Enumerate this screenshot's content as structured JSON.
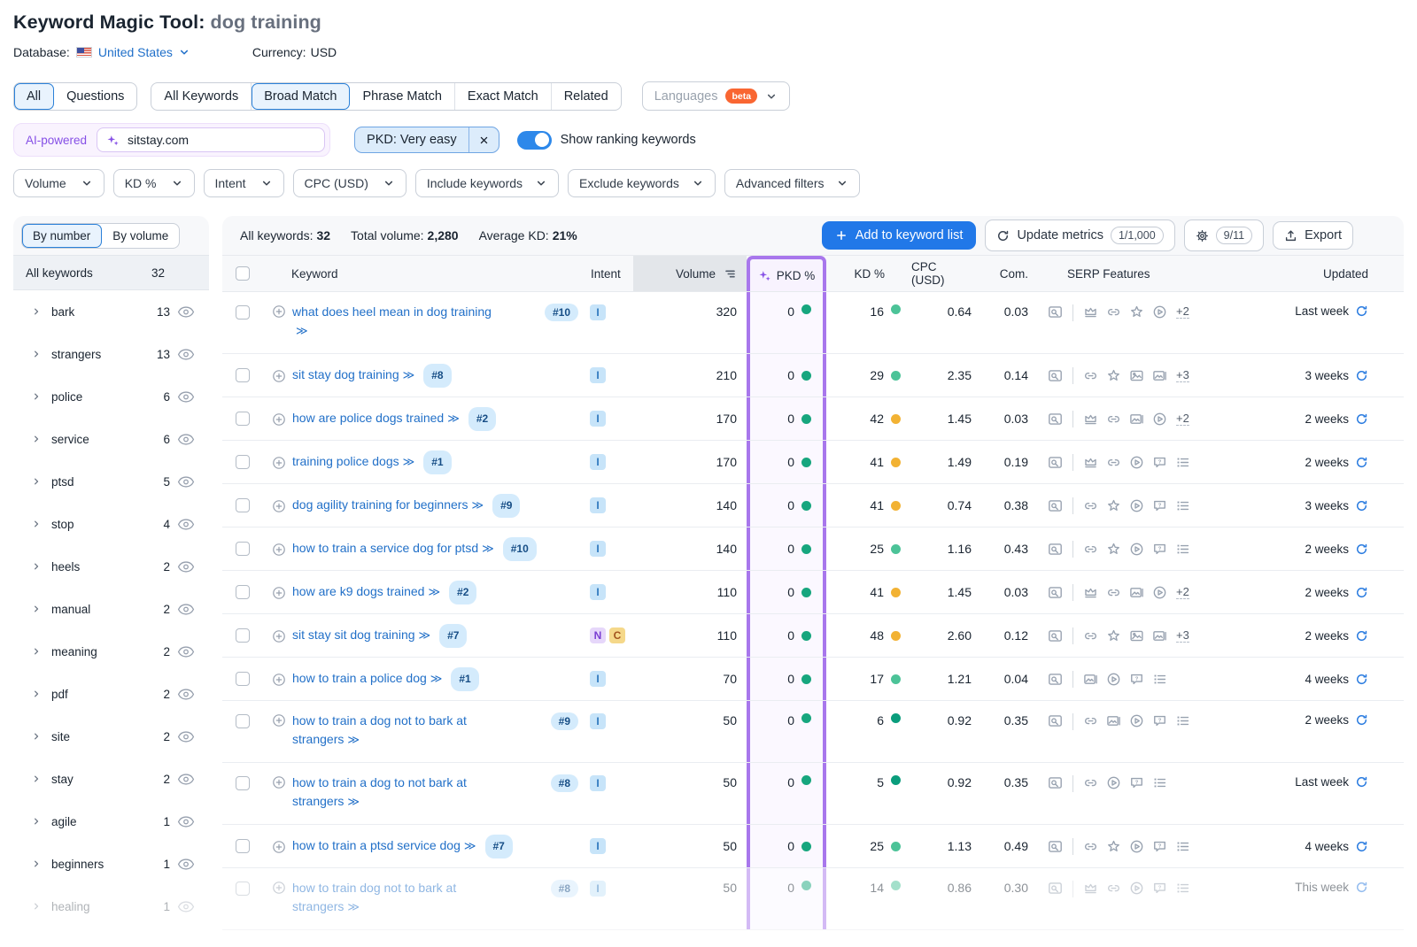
{
  "colors": {
    "primary_blue": "#2178e8",
    "link_blue": "#2270c8",
    "pkd_highlight_purple": "#a877ec",
    "ai_purple": "#8650e6",
    "beta_orange": "#f96632",
    "toggle_blue": "#2d88ea",
    "kd_very_easy": "#0a9d7c",
    "kd_easy": "#4cc398",
    "kd_possible": "#f2b233",
    "pkd_dot_green": "#17a67e",
    "intent_informational": "#c7e4f9",
    "intent_navigational": "#e6d7fa",
    "intent_commercial": "#f5d88a"
  },
  "header": {
    "title": "Keyword Magic Tool:",
    "query": "dog training",
    "database_label": "Database:",
    "database_value": "United States",
    "currency_label": "Currency:",
    "currency_value": "USD"
  },
  "tabs": {
    "match_tabs": [
      "All",
      "Questions"
    ],
    "match_selected": 0,
    "type_tabs": [
      "All Keywords",
      "Broad Match",
      "Phrase Match",
      "Exact Match",
      "Related"
    ],
    "type_selected": 1,
    "languages_label": "Languages",
    "beta_label": "beta"
  },
  "search": {
    "ai_label": "AI-powered",
    "value": "sitstay.com",
    "pkd_filter": "PKD: Very easy",
    "toggle_label": "Show ranking keywords",
    "toggle_on": true
  },
  "filters": [
    "Volume",
    "KD %",
    "Intent",
    "CPC (USD)",
    "Include keywords",
    "Exclude keywords",
    "Advanced filters"
  ],
  "sidebar": {
    "sort_options": [
      "By number",
      "By volume"
    ],
    "sort_selected": 0,
    "header_label": "All keywords",
    "header_count": "32",
    "groups": [
      {
        "label": "bark",
        "count": "13"
      },
      {
        "label": "strangers",
        "count": "13"
      },
      {
        "label": "police",
        "count": "6"
      },
      {
        "label": "service",
        "count": "6"
      },
      {
        "label": "ptsd",
        "count": "5"
      },
      {
        "label": "stop",
        "count": "4"
      },
      {
        "label": "heels",
        "count": "2"
      },
      {
        "label": "manual",
        "count": "2"
      },
      {
        "label": "meaning",
        "count": "2"
      },
      {
        "label": "pdf",
        "count": "2"
      },
      {
        "label": "site",
        "count": "2"
      },
      {
        "label": "stay",
        "count": "2"
      },
      {
        "label": "agile",
        "count": "1"
      },
      {
        "label": "beginners",
        "count": "1"
      },
      {
        "label": "healing",
        "count": "1",
        "faded": true
      }
    ]
  },
  "toolbar": {
    "stats": [
      {
        "label": "All keywords:",
        "value": "32"
      },
      {
        "label": "Total volume:",
        "value": "2,280"
      },
      {
        "label": "Average KD:",
        "value": "21%"
      }
    ],
    "add_button": "Add to keyword list",
    "update_button": "Update metrics",
    "update_quota": "1/1,000",
    "settings_quota": "9/11",
    "export_button": "Export"
  },
  "table": {
    "columns": {
      "keyword": "Keyword",
      "intent": "Intent",
      "volume": "Volume",
      "pkd": "PKD %",
      "kd": "KD %",
      "cpc": "CPC (USD)",
      "com": "Com.",
      "serp": "SERP Features",
      "updated": "Updated"
    },
    "rows": [
      {
        "l1": "what does heel mean in dog training",
        "chev1": false,
        "l2": "",
        "chev2": true,
        "badge": "#10",
        "intents": [
          "I"
        ],
        "volume": "320",
        "pkd": "0",
        "kd": "16",
        "kd_level": "easy",
        "cpc": "0.64",
        "com": "0.03",
        "serp": [
          "crown",
          "link",
          "star",
          "play"
        ],
        "more": "+2",
        "updated": "Last week",
        "faded": false
      },
      {
        "l1": "sit stay dog training",
        "chev1": true,
        "l2": null,
        "chev2": false,
        "badge": "#8",
        "intents": [
          "I"
        ],
        "volume": "210",
        "pkd": "0",
        "kd": "29",
        "kd_level": "easy",
        "cpc": "2.35",
        "com": "0.14",
        "serp": [
          "link",
          "star",
          "image",
          "image-alt"
        ],
        "more": "+3",
        "updated": "3 weeks",
        "faded": false
      },
      {
        "l1": "how are police dogs trained",
        "chev1": true,
        "l2": null,
        "chev2": false,
        "badge": "#2",
        "intents": [
          "I"
        ],
        "volume": "170",
        "pkd": "0",
        "kd": "42",
        "kd_level": "possible",
        "cpc": "1.45",
        "com": "0.03",
        "serp": [
          "crown",
          "link",
          "image-alt",
          "play"
        ],
        "more": "+2",
        "updated": "2 weeks",
        "faded": false
      },
      {
        "l1": "training police dogs",
        "chev1": true,
        "l2": null,
        "chev2": false,
        "badge": "#1",
        "intents": [
          "I"
        ],
        "volume": "170",
        "pkd": "0",
        "kd": "41",
        "kd_level": "possible",
        "cpc": "1.49",
        "com": "0.19",
        "serp": [
          "crown",
          "link",
          "play",
          "question",
          "list"
        ],
        "more": null,
        "updated": "2 weeks",
        "faded": false
      },
      {
        "l1": "dog agility training for beginners",
        "chev1": true,
        "l2": null,
        "chev2": false,
        "badge": "#9",
        "intents": [
          "I"
        ],
        "volume": "140",
        "pkd": "0",
        "kd": "41",
        "kd_level": "possible",
        "cpc": "0.74",
        "com": "0.38",
        "serp": [
          "link",
          "star",
          "play",
          "question",
          "list"
        ],
        "more": null,
        "updated": "3 weeks",
        "faded": false
      },
      {
        "l1": "how to train a service dog for ptsd",
        "chev1": true,
        "l2": null,
        "chev2": false,
        "badge": "#10",
        "intents": [
          "I"
        ],
        "volume": "140",
        "pkd": "0",
        "kd": "25",
        "kd_level": "easy",
        "cpc": "1.16",
        "com": "0.43",
        "serp": [
          "link",
          "star",
          "play",
          "question",
          "list"
        ],
        "more": null,
        "updated": "2 weeks",
        "faded": false
      },
      {
        "l1": "how are k9 dogs trained",
        "chev1": true,
        "l2": null,
        "chev2": false,
        "badge": "#2",
        "intents": [
          "I"
        ],
        "volume": "110",
        "pkd": "0",
        "kd": "41",
        "kd_level": "possible",
        "cpc": "1.45",
        "com": "0.03",
        "serp": [
          "crown",
          "link",
          "image-alt",
          "play"
        ],
        "more": "+2",
        "updated": "2 weeks",
        "faded": false
      },
      {
        "l1": "sit stay sit dog training",
        "chev1": true,
        "l2": null,
        "chev2": false,
        "badge": "#7",
        "intents": [
          "N",
          "C"
        ],
        "volume": "110",
        "pkd": "0",
        "kd": "48",
        "kd_level": "possible",
        "cpc": "2.60",
        "com": "0.12",
        "serp": [
          "link",
          "star",
          "image",
          "image-alt"
        ],
        "more": "+3",
        "updated": "2 weeks",
        "faded": false
      },
      {
        "l1": "how to train a police dog",
        "chev1": true,
        "l2": null,
        "chev2": false,
        "badge": "#1",
        "intents": [
          "I"
        ],
        "volume": "70",
        "pkd": "0",
        "kd": "17",
        "kd_level": "easy",
        "cpc": "1.21",
        "com": "0.04",
        "serp": [
          "image-alt",
          "play",
          "question",
          "list"
        ],
        "more": null,
        "updated": "4 weeks",
        "faded": false
      },
      {
        "l1": "how to train a dog not to bark at",
        "chev1": false,
        "l2": "strangers",
        "chev2": true,
        "badge": "#9",
        "intents": [
          "I"
        ],
        "volume": "50",
        "pkd": "0",
        "kd": "6",
        "kd_level": "very-easy",
        "cpc": "0.92",
        "com": "0.35",
        "serp": [
          "link",
          "image-alt",
          "play",
          "question",
          "list"
        ],
        "more": null,
        "updated": "2 weeks",
        "faded": false
      },
      {
        "l1": "how to train a dog to not bark at",
        "chev1": false,
        "l2": "strangers",
        "chev2": true,
        "badge": "#8",
        "intents": [
          "I"
        ],
        "volume": "50",
        "pkd": "0",
        "kd": "5",
        "kd_level": "very-easy",
        "cpc": "0.92",
        "com": "0.35",
        "serp": [
          "link",
          "play",
          "question",
          "list"
        ],
        "more": null,
        "updated": "Last week",
        "faded": false
      },
      {
        "l1": "how to train a ptsd service dog",
        "chev1": true,
        "l2": null,
        "chev2": false,
        "badge": "#7",
        "intents": [
          "I"
        ],
        "volume": "50",
        "pkd": "0",
        "kd": "25",
        "kd_level": "easy",
        "cpc": "1.13",
        "com": "0.49",
        "serp": [
          "link",
          "star",
          "play",
          "question",
          "list"
        ],
        "more": null,
        "updated": "4 weeks",
        "faded": false
      },
      {
        "l1": "how to train dog not to bark at",
        "chev1": false,
        "l2": "strangers",
        "chev2": true,
        "badge": "#8",
        "intents": [
          "I"
        ],
        "volume": "50",
        "pkd": "0",
        "kd": "14",
        "kd_level": "easy",
        "cpc": "0.86",
        "com": "0.30",
        "serp": [
          "crown",
          "link",
          "play",
          "question",
          "list"
        ],
        "more": null,
        "updated": "This week",
        "faded": true
      }
    ]
  }
}
